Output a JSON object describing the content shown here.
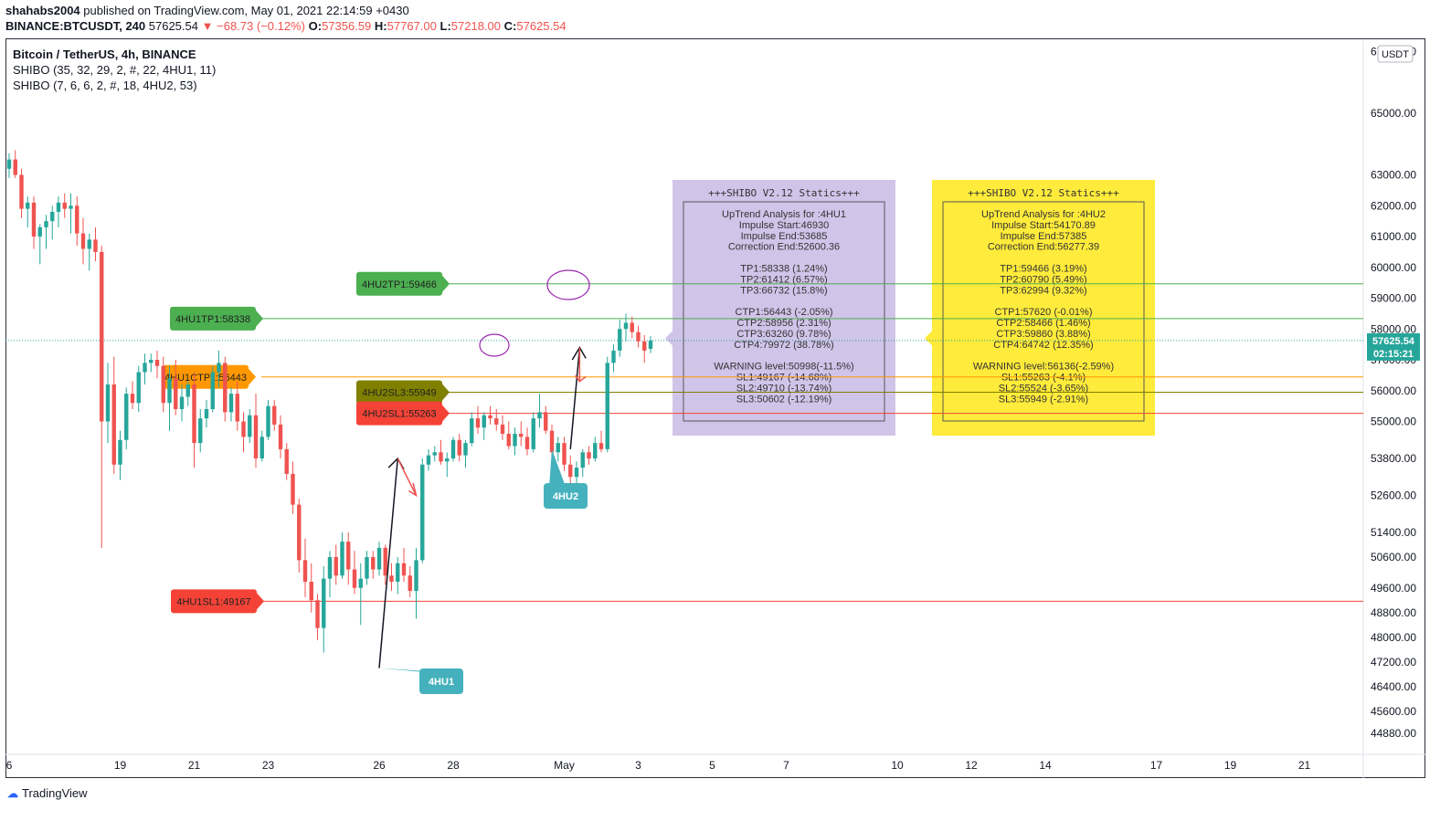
{
  "header": {
    "author": "shahabs2004",
    "published_text": "published on TradingView.com, May 01, 2021 22:14:59 +0430",
    "symbol": "BINANCE:BTCUSDT, 240",
    "last": "57625.54",
    "change": "−68.73 (−0.12%)",
    "o_label": "O:",
    "o_val": "57356.59",
    "h_label": "H:",
    "h_val": "57767.00",
    "l_label": "L:",
    "l_val": "57218.00",
    "c_label": "C:",
    "c_val": "57625.54"
  },
  "legend": {
    "title": "Bitcoin / TetherUS, 4h, BINANCE",
    "ind1": "SHIBO (35, 32, 29, 2, #, 22, 4HU1, 11)",
    "ind2": "SHIBO (7, 6, 6, 2, #, 18, 4HU2, 53)"
  },
  "currency_badge": "USDT",
  "price_badge": "57625.54",
  "time_badge": "02:15:21",
  "footer": "TradingView",
  "colors": {
    "up": "#26a69a",
    "down": "#ef5350",
    "tp": "#4caf50",
    "ctp": "#ff9800",
    "sl": "#f44336",
    "sl3": "#808000",
    "label_tag": "#45b1bd",
    "box1": "#d1c4e9",
    "box2": "#ffeb3b",
    "circle": "#9c27b0"
  },
  "chart_data": {
    "type": "candlestick",
    "timeframe": "4h",
    "ylim": [
      44200,
      67400
    ],
    "y_ticks": [
      67000,
      65000,
      63000,
      62000,
      61000,
      60000,
      59000,
      58000,
      57000,
      56000,
      55000,
      53800,
      52600,
      51400,
      50600,
      49600,
      48800,
      48000,
      47200,
      46400,
      45600,
      44880
    ],
    "y_tick_labels": [
      "67000.00",
      "65000.00",
      "63000.00",
      "62000.00",
      "61000.00",
      "60000.00",
      "59000.00",
      "58000.00",
      "57000.00",
      "56000.00",
      "55000.00",
      "53800.00",
      "52600.00",
      "51400.00",
      "50600.00",
      "49600.00",
      "48800.00",
      "48000.00",
      "47200.00",
      "46400.00",
      "45600.00",
      "44880.00"
    ],
    "x_ticks": [
      {
        "label": "6",
        "bar": 0
      },
      {
        "label": "19",
        "bar": 18
      },
      {
        "label": "21",
        "bar": 30
      },
      {
        "label": "23",
        "bar": 42
      },
      {
        "label": "26",
        "bar": 60
      },
      {
        "label": "28",
        "bar": 72
      },
      {
        "label": "May",
        "bar": 90
      },
      {
        "label": "3",
        "bar": 102
      },
      {
        "label": "5",
        "bar": 114
      },
      {
        "label": "7",
        "bar": 126
      },
      {
        "label": "10",
        "bar": 144
      },
      {
        "label": "12",
        "bar": 156
      },
      {
        "label": "14",
        "bar": 168
      },
      {
        "label": "17",
        "bar": 186
      },
      {
        "label": "19",
        "bar": 198
      },
      {
        "label": "21",
        "bar": 210
      }
    ],
    "candles_ohlc": [
      [
        63200,
        63700,
        62900,
        63500
      ],
      [
        63500,
        63800,
        62900,
        63000
      ],
      [
        63000,
        63200,
        61600,
        61900
      ],
      [
        61900,
        62300,
        61300,
        62100
      ],
      [
        62100,
        62300,
        60600,
        61000
      ],
      [
        61000,
        61400,
        60100,
        61300
      ],
      [
        61300,
        61700,
        60600,
        61500
      ],
      [
        61500,
        62000,
        60900,
        61800
      ],
      [
        61800,
        62300,
        61300,
        62100
      ],
      [
        62100,
        62400,
        61600,
        61900
      ],
      [
        61900,
        62400,
        61100,
        62000
      ],
      [
        62000,
        62300,
        60700,
        61100
      ],
      [
        61100,
        61600,
        60100,
        60600
      ],
      [
        60600,
        61100,
        59900,
        60900
      ],
      [
        60900,
        61300,
        60200,
        60500
      ],
      [
        60500,
        60700,
        50900,
        55000
      ],
      [
        55000,
        56900,
        54300,
        56200
      ],
      [
        56200,
        57100,
        53300,
        53600
      ],
      [
        53600,
        54700,
        53100,
        54400
      ],
      [
        54400,
        56100,
        54100,
        55900
      ],
      [
        55900,
        56300,
        55400,
        55600
      ],
      [
        55600,
        56800,
        55300,
        56600
      ],
      [
        56600,
        57200,
        56200,
        56900
      ],
      [
        56900,
        57200,
        56600,
        57000
      ],
      [
        57000,
        57300,
        56400,
        56800
      ],
      [
        56800,
        57100,
        55300,
        55600
      ],
      [
        55600,
        56800,
        54700,
        56400
      ],
      [
        56400,
        57000,
        55200,
        55400
      ],
      [
        55400,
        56200,
        55000,
        55800
      ],
      [
        55800,
        56300,
        55500,
        56200
      ],
      [
        56200,
        56600,
        53500,
        54300
      ],
      [
        54300,
        55400,
        54000,
        55100
      ],
      [
        55100,
        55700,
        54800,
        55400
      ],
      [
        55400,
        56800,
        55300,
        56600
      ],
      [
        56600,
        57300,
        56100,
        56900
      ],
      [
        56900,
        57100,
        55000,
        55300
      ],
      [
        55300,
        56100,
        55000,
        55900
      ],
      [
        55900,
        56300,
        54700,
        55000
      ],
      [
        55000,
        55300,
        54000,
        54500
      ],
      [
        54500,
        55400,
        54300,
        55200
      ],
      [
        55200,
        55900,
        53500,
        53800
      ],
      [
        53800,
        54700,
        53700,
        54500
      ],
      [
        54500,
        55700,
        54400,
        55500
      ],
      [
        55500,
        55700,
        54700,
        54900
      ],
      [
        54900,
        55200,
        53800,
        54100
      ],
      [
        54100,
        54300,
        53100,
        53300
      ],
      [
        53300,
        53700,
        52000,
        52300
      ],
      [
        52300,
        52500,
        50100,
        50500
      ],
      [
        50500,
        51200,
        49300,
        49800
      ],
      [
        49800,
        50400,
        48800,
        49200
      ],
      [
        49200,
        49400,
        47900,
        48300
      ],
      [
        48300,
        50300,
        47500,
        49900
      ],
      [
        49900,
        50800,
        49300,
        50600
      ],
      [
        50600,
        51000,
        49700,
        50000
      ],
      [
        50000,
        51400,
        49900,
        51100
      ],
      [
        51100,
        51400,
        49700,
        50200
      ],
      [
        50200,
        50800,
        49400,
        49600
      ],
      [
        49600,
        50400,
        48400,
        49900
      ],
      [
        49900,
        50800,
        49700,
        50600
      ],
      [
        50600,
        50800,
        49900,
        50200
      ],
      [
        50200,
        51100,
        50000,
        50900
      ],
      [
        50900,
        51000,
        49700,
        50000
      ],
      [
        50000,
        50400,
        49500,
        49800
      ],
      [
        49800,
        50600,
        49400,
        50400
      ],
      [
        50400,
        50900,
        49800,
        50000
      ],
      [
        50000,
        50300,
        49300,
        49500
      ],
      [
        49500,
        50900,
        48600,
        50500
      ],
      [
        50500,
        53800,
        50400,
        53600
      ],
      [
        53600,
        54100,
        53400,
        53900
      ],
      [
        53900,
        54200,
        53700,
        54000
      ],
      [
        54000,
        54400,
        53600,
        53700
      ],
      [
        53700,
        54000,
        53200,
        53800
      ],
      [
        53800,
        54500,
        53700,
        54400
      ],
      [
        54400,
        54600,
        53700,
        53900
      ],
      [
        53900,
        54400,
        53500,
        54300
      ],
      [
        54300,
        55300,
        54200,
        55100
      ],
      [
        55100,
        55500,
        54600,
        54800
      ],
      [
        54800,
        55300,
        54400,
        55200
      ],
      [
        55200,
        55500,
        54900,
        55100
      ],
      [
        55100,
        55400,
        54700,
        54900
      ],
      [
        54900,
        55200,
        54400,
        54600
      ],
      [
        54600,
        55000,
        54100,
        54200
      ],
      [
        54200,
        54800,
        53900,
        54600
      ],
      [
        54600,
        55000,
        54200,
        54500
      ],
      [
        54500,
        54800,
        53900,
        54100
      ],
      [
        54100,
        55300,
        54000,
        55100
      ],
      [
        55100,
        55900,
        54800,
        55300
      ],
      [
        55300,
        55500,
        54600,
        54700
      ],
      [
        54700,
        54900,
        53800,
        54000
      ],
      [
        54000,
        54500,
        53700,
        54300
      ],
      [
        54300,
        54500,
        53400,
        53600
      ],
      [
        53600,
        53900,
        52900,
        53200
      ],
      [
        53200,
        53700,
        52700,
        53500
      ],
      [
        53500,
        54100,
        53200,
        54000
      ],
      [
        54000,
        54200,
        53600,
        53800
      ],
      [
        53800,
        54500,
        53700,
        54300
      ],
      [
        54300,
        54700,
        54000,
        54100
      ],
      [
        54100,
        57100,
        54000,
        56900
      ],
      [
        56900,
        57500,
        56600,
        57300
      ],
      [
        57300,
        58300,
        57100,
        58000
      ],
      [
        58000,
        58500,
        57600,
        58200
      ],
      [
        58200,
        58400,
        57700,
        57900
      ],
      [
        57900,
        58100,
        57400,
        57600
      ],
      [
        57600,
        57800,
        56900,
        57300
      ],
      [
        57356.59,
        57767,
        57218,
        57625.54
      ]
    ],
    "levels": [
      {
        "label": "4HU2TP1:59466",
        "price": 59466,
        "color": "tp"
      },
      {
        "label": "4HU1TP1:58338",
        "price": 58338,
        "color": "tp"
      },
      {
        "label": "4HU1CTP1:56443",
        "price": 56443,
        "color": "ctp"
      },
      {
        "label": "4HU2SL3:55949",
        "price": 55949,
        "color": "sl3"
      },
      {
        "label": "4HU2SL1:55263",
        "price": 55263,
        "color": "sl"
      },
      {
        "label": "4HU1SL1:49167",
        "price": 49167,
        "color": "sl"
      }
    ],
    "callouts": [
      {
        "label": "4HU1",
        "bar": 60,
        "price": 47000
      },
      {
        "label": "4HU2",
        "bar": 91,
        "price": 54100
      }
    ]
  },
  "stats_boxes": [
    {
      "title": "+++SHIBO V2.12 Statics+++",
      "lines": [
        "UpTrend Analysis for :4HU1",
        "Impulse Start:46930",
        "Impulse End:53685",
        "Correction End:52600.36",
        "",
        "TP1:58338 (1.24%)",
        "TP2:61412 (6.57%)",
        "TP3:66732 (15.8%)",
        "",
        "CTP1:56443 (-2.05%)",
        "CTP2:58956 (2.31%)",
        "CTP3:63260 (9.78%)",
        "CTP4:79972 (38.78%)",
        "",
        "WARNING level:50998(-11.5%)",
        "SL1:49167 (-14.68%)",
        "SL2:49710 (-13.74%)",
        "SL3:50602 (-12.19%)"
      ]
    },
    {
      "title": "+++SHIBO V2.12 Statics+++",
      "lines": [
        "UpTrend Analysis for :4HU2",
        "Impulse Start:54170.89",
        "Impulse End:57385",
        "Correction End:56277.39",
        "",
        "TP1:59466 (3.19%)",
        "TP2:60790 (5.49%)",
        "TP3:62994 (9.32%)",
        "",
        "CTP1:57620 (-0.01%)",
        "CTP2:58466 (1.46%)",
        "CTP3:59860 (3.88%)",
        "CTP4:64742 (12.35%)",
        "",
        "WARNING level:56136(-2.59%)",
        "SL1:55263 (-4.1%)",
        "SL2:55524 (-3.65%)",
        "SL3:55949 (-2.91%)"
      ]
    }
  ]
}
